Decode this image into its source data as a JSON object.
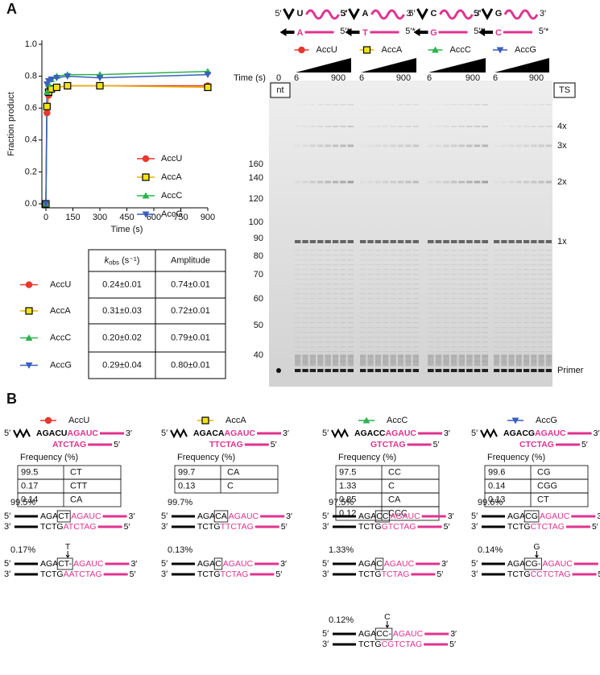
{
  "chart_data": {
    "type": "line",
    "xlabel": "Time (s)",
    "ylabel": "Fraction product",
    "x": [
      0,
      6,
      15,
      30,
      60,
      120,
      300,
      900
    ],
    "xlim": [
      0,
      900
    ],
    "xticks": [
      0,
      150,
      300,
      450,
      600,
      750,
      900
    ],
    "ylim": [
      0,
      1
    ],
    "yticks": [
      {
        "value": 0,
        "label": "0.0"
      },
      0.2,
      0.4,
      0.6,
      0.8,
      {
        "value": 1,
        "label": "1.0"
      }
    ],
    "series": [
      {
        "name": "AccU",
        "color": "#e8372c",
        "marker": "circle",
        "values": [
          0,
          0.57,
          0.68,
          0.72,
          0.73,
          0.74,
          0.74,
          0.74
        ]
      },
      {
        "name": "AccA",
        "color": "#f2e21b",
        "marker": "square",
        "values": [
          0,
          0.61,
          0.7,
          0.72,
          0.73,
          0.74,
          0.74,
          0.73
        ]
      },
      {
        "name": "AccC",
        "color": "#2bb24c",
        "marker": "triangle-up",
        "values": [
          0,
          0.7,
          0.75,
          0.78,
          0.8,
          0.81,
          0.81,
          0.83
        ]
      },
      {
        "name": "AccG",
        "color": "#3a5fbf",
        "marker": "triangle-down",
        "values": [
          0,
          0.75,
          0.77,
          0.78,
          0.79,
          0.8,
          0.79,
          0.81
        ]
      }
    ]
  },
  "panel_labels": [
    "A",
    "B"
  ],
  "primes": {
    "five": "5′",
    "three": "3′",
    "five_star": "5′*"
  },
  "kinetics_table": {
    "header_k": "k",
    "header_sub": "obs",
    "header_unit": " (s⁻¹)",
    "header_amplitude": "Amplitude",
    "rows": [
      [
        "0.24±0.01",
        "0.74±0.01"
      ],
      [
        "0.31±0.03",
        "0.72±0.01"
      ],
      [
        "0.20±0.02",
        "0.79±0.01"
      ],
      [
        "0.29±0.04",
        "0.80±0.01"
      ]
    ]
  },
  "gel": {
    "substrates": [
      {
        "top": "U",
        "bottom": "A"
      },
      {
        "top": "A",
        "bottom": "T"
      },
      {
        "top": "C",
        "bottom": "G"
      },
      {
        "top": "G",
        "bottom": "C"
      }
    ],
    "time_label": "Time (s)",
    "time_zero": "0",
    "time_start": "6",
    "time_end": "900",
    "left_box": "nt",
    "right_box": "TS",
    "markers": [
      "160",
      "140",
      "120",
      "100",
      "90",
      "80",
      "70",
      "60",
      "50",
      "40"
    ],
    "products": [
      "4x",
      "3x",
      "2x",
      "1x",
      "Primer"
    ]
  },
  "panel_b": {
    "frequency_label": "Frequency (%)",
    "columns": [
      {
        "top": "AGACU",
        "top_pink": "AGAUC",
        "bottom": "ATCTAG",
        "frequencies": [
          [
            "99.5",
            "CT"
          ],
          [
            "0.17",
            "CTT"
          ],
          [
            "0.14",
            "CA"
          ]
        ],
        "alignments": [
          {
            "percent": "99.5%",
            "top": [
              "AGA",
              "CT",
              "AGAUC"
            ],
            "bottom": [
              "TCTG",
              "ATCTAG"
            ]
          },
          {
            "percent": "0.17%",
            "top": [
              "AGA",
              "CT-",
              "AGAUC"
            ],
            "bottom": [
              "TCTG",
              "AATCTAG"
            ],
            "insert": "T"
          }
        ]
      },
      {
        "top": "AGACA",
        "top_pink": "AGAUC",
        "bottom": "TTCTAG",
        "frequencies": [
          [
            "99.7",
            "CA"
          ],
          [
            "0.13",
            "C"
          ]
        ],
        "alignments": [
          {
            "percent": "99.7%",
            "top": [
              "AGA",
              "CA",
              "AGAUC"
            ],
            "bottom": [
              "TCTG",
              "TTCTAG"
            ]
          },
          {
            "percent": "0.13%",
            "top": [
              "AGA",
              "C",
              "AGAUC"
            ],
            "bottom": [
              "TCTG",
              "TCTAG"
            ]
          }
        ]
      },
      {
        "top": "AGACC",
        "top_pink": "AGAUC",
        "bottom": "GTCTAG",
        "frequencies": [
          [
            "97.5",
            "CC"
          ],
          [
            "1.33",
            "C"
          ],
          [
            "0.85",
            "CA"
          ],
          [
            "0.12",
            "CCC"
          ]
        ],
        "alignments": [
          {
            "percent": "97.5%",
            "top": [
              "AGA",
              "CC",
              "AGAUC"
            ],
            "bottom": [
              "TCTG",
              "GTCTAG"
            ]
          },
          {
            "percent": "1.33%",
            "top": [
              "AGA",
              "C",
              "AGAUC"
            ],
            "bottom": [
              "TCTG",
              "TCTAG"
            ]
          },
          {
            "percent": "0.12%",
            "top": [
              "AGA",
              "CC-",
              "AGAUC"
            ],
            "bottom": [
              "TCTG",
              "CGTCTAG"
            ],
            "insert": "C"
          }
        ]
      },
      {
        "top": "AGACG",
        "top_pink": "AGAUC",
        "bottom": "CTCTAG",
        "frequencies": [
          [
            "99.6",
            "CG"
          ],
          [
            "0.14",
            "CGG"
          ],
          [
            "0.13",
            "CT"
          ]
        ],
        "alignments": [
          {
            "percent": "99.6%",
            "top": [
              "AGA",
              "CG",
              "AGAUC"
            ],
            "bottom": [
              "TCTG",
              "CTCTAG"
            ]
          },
          {
            "percent": "0.14%",
            "top": [
              "AGA",
              "CG-",
              "AGAUC"
            ],
            "bottom": [
              "TCTG",
              "CCTCTAG"
            ],
            "insert": "G"
          }
        ]
      }
    ]
  }
}
